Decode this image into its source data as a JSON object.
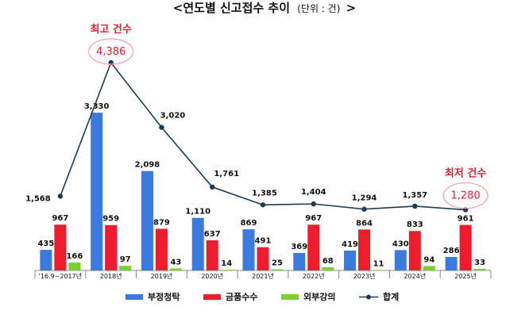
{
  "colors": {
    "series_blue": "#3b7be0",
    "series_red": "#ee1c2c",
    "series_green": "#7ccf2c",
    "total_line": "#1e3c52",
    "highlight_red": "#e02030",
    "axis": "#888888",
    "text": "#111111"
  },
  "chart_data": {
    "type": "bar",
    "title": "<연도별 신고접수 추이",
    "title_unit": "(단위 : 건)",
    "title_end": ">",
    "categories": [
      "'16.9~2017년",
      "2018년",
      "2019년",
      "2020년",
      "2021년",
      "2022년",
      "2023년",
      "2024년",
      "2025년"
    ],
    "series": [
      {
        "name": "부정청탁",
        "color": "#3b7be0",
        "values": [
          435,
          3330,
          2098,
          1110,
          869,
          369,
          419,
          430,
          286
        ]
      },
      {
        "name": "금품수수",
        "color": "#ee1c2c",
        "values": [
          967,
          959,
          879,
          637,
          491,
          967,
          864,
          833,
          961
        ]
      },
      {
        "name": "외부강의",
        "color": "#7ccf2c",
        "values": [
          166,
          97,
          43,
          14,
          25,
          68,
          11,
          94,
          33
        ]
      }
    ],
    "line_series": {
      "name": "합계",
      "values": [
        1568,
        4386,
        3020,
        1761,
        1385,
        1404,
        1294,
        1357,
        1280
      ]
    },
    "labels": {
      "bars": [
        [
          "435",
          "3,330",
          "2,098",
          "1,110",
          "869",
          "369",
          "419",
          "430",
          "286"
        ],
        [
          "967",
          "959",
          "879",
          "637",
          "491",
          "967",
          "864",
          "833",
          "961"
        ],
        [
          "166",
          "97",
          "43",
          "14",
          "25",
          "68",
          "11",
          "94",
          "33"
        ]
      ],
      "line": [
        "1,568",
        "4,386",
        "3,020",
        "1,761",
        "1,385",
        "1,404",
        "1,294",
        "1,357",
        "1,280"
      ]
    },
    "annotations": [
      {
        "text": "최고 건수",
        "category_index": 1
      },
      {
        "text": "최저 건수",
        "category_index": 8
      }
    ],
    "ylim": [
      0,
      4386
    ],
    "grid": false,
    "legend_position": "bottom"
  }
}
